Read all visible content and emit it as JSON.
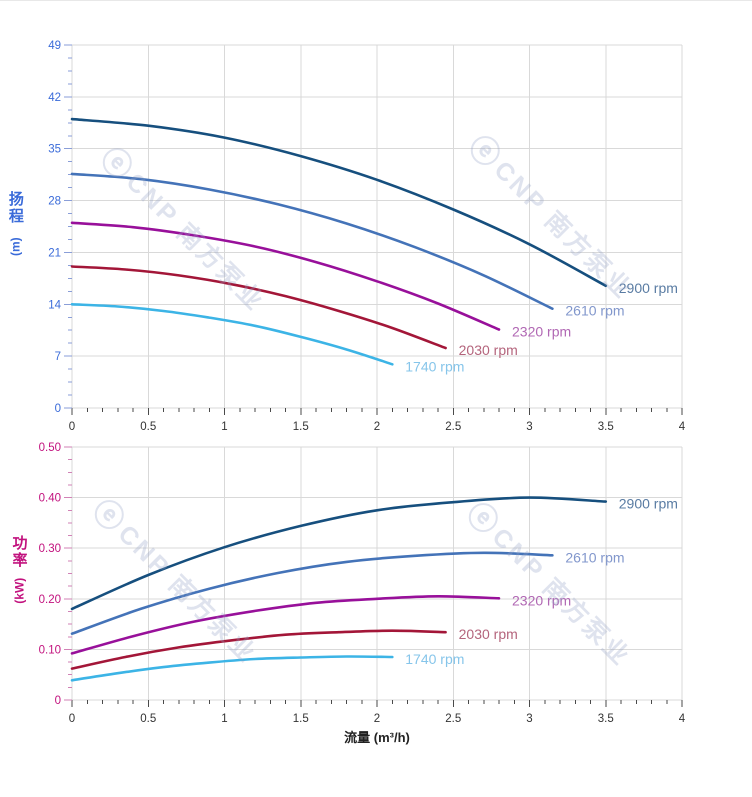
{
  "page": {
    "x_axis_title": "流量 (m³/h)",
    "grid_color": "#d9d9d9",
    "x_tick_color": "#4a4a4a",
    "x_label_color": "#333333"
  },
  "watermark": {
    "logo": "ⓔ",
    "text": "CNP 南方泵业"
  },
  "chart_data": [
    {
      "type": "line",
      "title": "head-vs-flow",
      "ylabel_cn": "扬程",
      "ylabel_unit": "(m)",
      "xlabel": "流量 (m³/h)",
      "axis_color": "#3a6bd9",
      "tick_color": "#8a9ed8",
      "xlim": [
        0,
        4
      ],
      "ylim": [
        0,
        49
      ],
      "xtick_step": 0.5,
      "xtick_minor": 0.1,
      "ytick_step": 7,
      "ytick_minor": 1.75,
      "xtick_labels": [
        "0",
        "0.5",
        "1",
        "1.5",
        "2",
        "2.5",
        "3",
        "3.5",
        "4"
      ],
      "ytick_labels": [
        "0",
        "7",
        "14",
        "21",
        "28",
        "35",
        "42",
        "49"
      ],
      "grid": true,
      "legend_position": "curve-end-labels",
      "series": [
        {
          "name": "2900 rpm",
          "color": "#164f7e",
          "label_color": "#5a7ca3",
          "points": [
            [
              0,
              39.0
            ],
            [
              0.5,
              38.1
            ],
            [
              1.0,
              36.5
            ],
            [
              1.5,
              34.0
            ],
            [
              2.0,
              30.8
            ],
            [
              2.5,
              26.8
            ],
            [
              3.0,
              22.1
            ],
            [
              3.5,
              16.5
            ]
          ]
        },
        {
          "name": "2610 rpm",
          "color": "#4473b8",
          "label_color": "#8297cc",
          "points": [
            [
              0,
              31.6
            ],
            [
              0.45,
              30.9
            ],
            [
              0.9,
              29.5
            ],
            [
              1.35,
              27.5
            ],
            [
              1.8,
              24.9
            ],
            [
              2.25,
              21.7
            ],
            [
              2.7,
              17.9
            ],
            [
              3.15,
              13.4
            ]
          ]
        },
        {
          "name": "2320 rpm",
          "color": "#98109a",
          "label_color": "#b168b4",
          "points": [
            [
              0,
              25.0
            ],
            [
              0.4,
              24.4
            ],
            [
              0.8,
              23.3
            ],
            [
              1.2,
              21.8
            ],
            [
              1.6,
              19.7
            ],
            [
              2.0,
              17.1
            ],
            [
              2.4,
              14.1
            ],
            [
              2.8,
              10.6
            ]
          ]
        },
        {
          "name": "2030 rpm",
          "color": "#a31638",
          "label_color": "#b4647c",
          "points": [
            [
              0,
              19.1
            ],
            [
              0.35,
              18.7
            ],
            [
              0.7,
              17.9
            ],
            [
              1.05,
              16.7
            ],
            [
              1.4,
              15.1
            ],
            [
              1.75,
              13.1
            ],
            [
              2.1,
              10.8
            ],
            [
              2.45,
              8.1
            ]
          ]
        },
        {
          "name": "1740 rpm",
          "color": "#3cb4e6",
          "label_color": "#86c5ea",
          "points": [
            [
              0,
              14.0
            ],
            [
              0.3,
              13.7
            ],
            [
              0.6,
              13.1
            ],
            [
              0.9,
              12.2
            ],
            [
              1.2,
              11.1
            ],
            [
              1.5,
              9.6
            ],
            [
              1.8,
              7.9
            ],
            [
              2.1,
              5.9
            ]
          ]
        }
      ]
    },
    {
      "type": "line",
      "title": "power-vs-flow",
      "ylabel_cn": "功率",
      "ylabel_unit": "(kW)",
      "xlabel": "流量 (m³/h)",
      "axis_color": "#c2127e",
      "tick_color": "#d182b6",
      "xlim": [
        0,
        4
      ],
      "ylim": [
        0,
        0.5
      ],
      "xtick_step": 0.5,
      "xtick_minor": 0.1,
      "ytick_step": 0.1,
      "ytick_minor": 0.025,
      "xtick_labels": [
        "0",
        "0.5",
        "1",
        "1.5",
        "2",
        "2.5",
        "3",
        "3.5",
        "4"
      ],
      "ytick_labels": [
        "0",
        "0.10",
        "0.20",
        "0.30",
        "0.40",
        "0.50"
      ],
      "grid": true,
      "legend_position": "curve-end-labels",
      "series": [
        {
          "name": "2900 rpm",
          "color": "#164f7e",
          "label_color": "#5a7ca3",
          "points": [
            [
              0,
              0.18
            ],
            [
              0.5,
              0.247
            ],
            [
              1.0,
              0.302
            ],
            [
              1.5,
              0.344
            ],
            [
              2.0,
              0.375
            ],
            [
              2.5,
              0.391
            ],
            [
              3.0,
              0.4
            ],
            [
              3.5,
              0.392
            ]
          ]
        },
        {
          "name": "2610 rpm",
          "color": "#4473b8",
          "label_color": "#8297cc",
          "points": [
            [
              0,
              0.131
            ],
            [
              0.45,
              0.18
            ],
            [
              0.9,
              0.22
            ],
            [
              1.35,
              0.251
            ],
            [
              1.8,
              0.273
            ],
            [
              2.25,
              0.285
            ],
            [
              2.7,
              0.291
            ],
            [
              3.15,
              0.286
            ]
          ]
        },
        {
          "name": "2320 rpm",
          "color": "#98109a",
          "label_color": "#b168b4",
          "points": [
            [
              0,
              0.092
            ],
            [
              0.4,
              0.126
            ],
            [
              0.8,
              0.155
            ],
            [
              1.2,
              0.176
            ],
            [
              1.6,
              0.192
            ],
            [
              2.0,
              0.2
            ],
            [
              2.4,
              0.205
            ],
            [
              2.8,
              0.201
            ]
          ]
        },
        {
          "name": "2030 rpm",
          "color": "#a31638",
          "label_color": "#b4647c",
          "points": [
            [
              0,
              0.062
            ],
            [
              0.35,
              0.085
            ],
            [
              0.7,
              0.104
            ],
            [
              1.05,
              0.118
            ],
            [
              1.4,
              0.129
            ],
            [
              1.75,
              0.134
            ],
            [
              2.1,
              0.137
            ],
            [
              2.45,
              0.134
            ]
          ]
        },
        {
          "name": "1740 rpm",
          "color": "#3cb4e6",
          "label_color": "#86c5ea",
          "points": [
            [
              0,
              0.039
            ],
            [
              0.3,
              0.053
            ],
            [
              0.6,
              0.065
            ],
            [
              0.9,
              0.074
            ],
            [
              1.2,
              0.081
            ],
            [
              1.5,
              0.084
            ],
            [
              1.8,
              0.086
            ],
            [
              2.1,
              0.085
            ]
          ]
        }
      ]
    }
  ]
}
